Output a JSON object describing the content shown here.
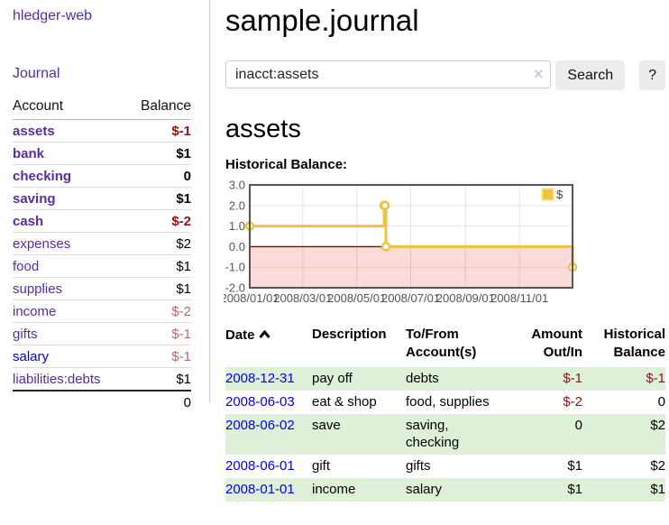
{
  "app": {
    "colors": {
      "link_purple": "#5a2ca0",
      "link_blue": "#0000ee",
      "negative_strong": "#8b1414",
      "negative_soft": "#b36b6b",
      "row_green": "#dff0d8",
      "button_bg": "#ececec",
      "divider": "#cccccc"
    }
  },
  "sidebar": {
    "brand": "hledger-web",
    "journal_label": "Journal",
    "accounts_table": {
      "header_account": "Account",
      "header_balance": "Balance",
      "rows": [
        {
          "name": "assets",
          "balance": "$-1"
        },
        {
          "name": "bank",
          "balance": "$1"
        },
        {
          "name": "checking",
          "balance": "0"
        },
        {
          "name": "saving",
          "balance": "$1"
        },
        {
          "name": "cash",
          "balance": "$-2"
        },
        {
          "name": "expenses",
          "balance": "$2"
        },
        {
          "name": "food",
          "balance": "$1"
        },
        {
          "name": "supplies",
          "balance": "$1"
        },
        {
          "name": "income",
          "balance": "$-2"
        },
        {
          "name": "gifts",
          "balance": "$-1"
        },
        {
          "name": "salary",
          "balance": "$-1"
        },
        {
          "name": "liabilities:debts",
          "balance": "$1"
        }
      ],
      "total": "0"
    }
  },
  "main": {
    "title": "sample.journal",
    "search": {
      "value": "inacct:assets",
      "clear_icon": "×",
      "button_label": "Search",
      "help_label": "?"
    },
    "account_heading": "assets"
  },
  "chart_data": {
    "type": "line",
    "title": "Historical Balance:",
    "step": true,
    "x_type": "date",
    "xrange": [
      "2008-01-01",
      "2008-12-31"
    ],
    "ylim": [
      -2,
      3
    ],
    "yticks": [
      {
        "v": 3,
        "label": "3.0"
      },
      {
        "v": 2,
        "label": "2.0"
      },
      {
        "v": 1,
        "label": "1.0"
      },
      {
        "v": 0,
        "label": "0.0"
      },
      {
        "v": -1,
        "label": "-1.0"
      },
      {
        "v": -2,
        "label": "-2.0"
      }
    ],
    "xticks": [
      {
        "v": "2008-01-01",
        "label": "2008/01/01"
      },
      {
        "v": "2008-03-01",
        "label": "2008/03/01"
      },
      {
        "v": "2008-05-01",
        "label": "2008/05/01"
      },
      {
        "v": "2008-07-01",
        "label": "2008/07/01"
      },
      {
        "v": "2008-09-01",
        "label": "2008/09/01"
      },
      {
        "v": "2008-11-01",
        "label": "2008/11/01"
      }
    ],
    "series": [
      {
        "name": "$",
        "color": "#edc240",
        "points": [
          [
            "2008-01-01",
            1
          ],
          [
            "2008-06-01",
            2
          ],
          [
            "2008-06-02",
            2
          ],
          [
            "2008-06-03",
            0
          ],
          [
            "2008-12-31",
            -1
          ]
        ]
      }
    ],
    "legend": {
      "position": "top-right",
      "label": "$"
    },
    "grid": true,
    "grid_color": "rgba(0,0,0,0.10)",
    "zero_line_color": "#8b0000",
    "negative_region_fill": "#fbdada",
    "border_color": "#545454",
    "tick_label_color": "#545454"
  },
  "register": {
    "headers": {
      "date": "Date",
      "description": "Description",
      "accounts_line1": "To/From",
      "accounts_line2": "Account(s)",
      "amount_line1": "Amount",
      "amount_line2": "Out/In",
      "balance_line1": "Historical",
      "balance_line2": "Balance"
    },
    "rows": [
      {
        "date": "2008-12-31",
        "description": "pay off",
        "accounts": "debts",
        "amount": "$-1",
        "balance": "$-1"
      },
      {
        "date": "2008-06-03",
        "description": "eat & shop",
        "accounts": "food, supplies",
        "amount": "$-2",
        "balance": "0"
      },
      {
        "date": "2008-06-02",
        "description": "save",
        "accounts": "saving, checking",
        "amount": "0",
        "balance": "$2"
      },
      {
        "date": "2008-06-01",
        "description": "gift",
        "accounts": "gifts",
        "amount": "$1",
        "balance": "$2"
      },
      {
        "date": "2008-01-01",
        "description": "income",
        "accounts": "salary",
        "amount": "$1",
        "balance": "$1"
      }
    ]
  }
}
